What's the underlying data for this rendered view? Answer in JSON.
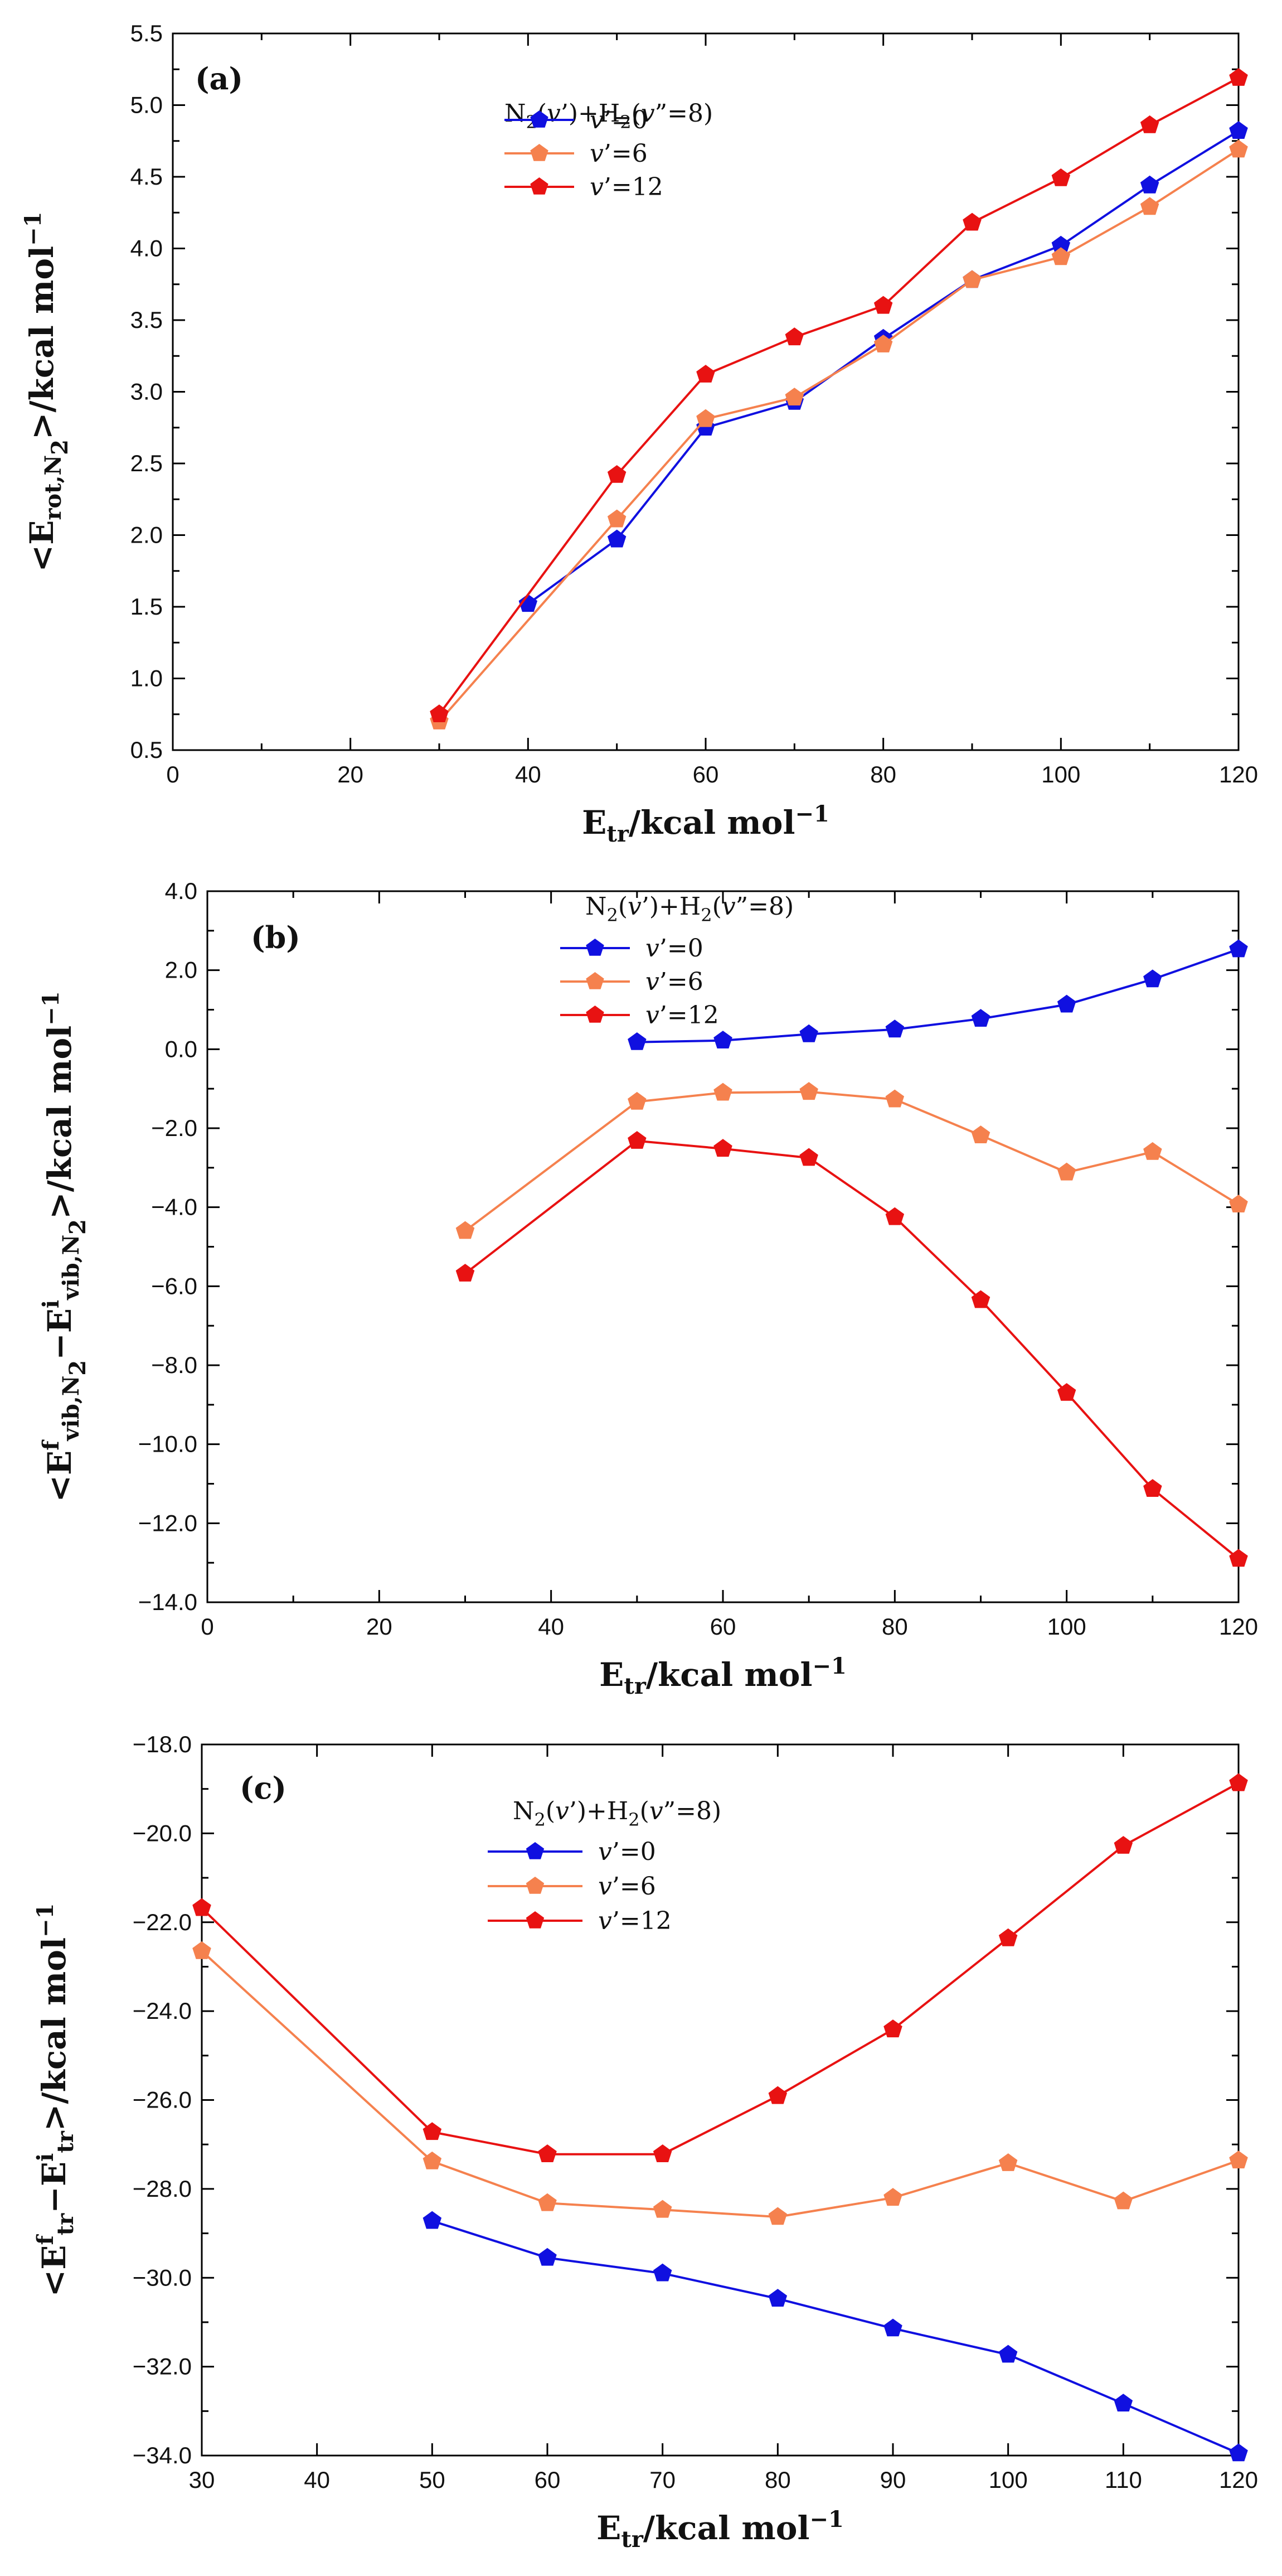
{
  "chart_data": [
    {
      "panel": "(a)",
      "type": "line",
      "xlabel": "E_tr/kcal mol^-1",
      "ylabel": "<E_rot,N2>/kcal mol^-1",
      "xlim": [
        0,
        120
      ],
      "ylim": [
        0.5,
        5.5
      ],
      "xticks": [
        "0",
        "20",
        "40",
        "60",
        "80",
        "100",
        "120"
      ],
      "yticks": [
        "0.5",
        "1.0",
        "1.5",
        "2.0",
        "2.5",
        "3.0",
        "3.5",
        "4.0",
        "4.5",
        "5.0",
        "5.5"
      ],
      "legend_title": "N2(v')+H2(v\"=8)",
      "legend_placement": "top-center",
      "series": [
        {
          "name": "v'=0",
          "color": "#1010e0",
          "x": [
            40,
            50,
            60,
            70,
            80,
            90,
            100,
            110,
            120
          ],
          "values": [
            1.52,
            1.97,
            2.75,
            2.93,
            3.37,
            3.78,
            4.02,
            4.44,
            4.82
          ]
        },
        {
          "name": "v'=6",
          "color": "#f5814e",
          "x": [
            30,
            50,
            60,
            70,
            80,
            90,
            100,
            110,
            120
          ],
          "values": [
            0.7,
            2.11,
            2.81,
            2.96,
            3.33,
            3.78,
            3.94,
            4.29,
            4.69
          ]
        },
        {
          "name": "v'=12",
          "color": "#e81212",
          "x": [
            30,
            50,
            60,
            70,
            80,
            90,
            100,
            110,
            120
          ],
          "values": [
            0.75,
            2.42,
            3.12,
            3.38,
            3.6,
            4.18,
            4.49,
            4.86,
            5.19
          ]
        }
      ]
    },
    {
      "panel": "(b)",
      "type": "line",
      "xlabel": "E_tr/kcal mol^-1",
      "ylabel": "<E^f_vib,N2 - E^i_vib,N2>/kcal mol^-1",
      "xlim": [
        0,
        120
      ],
      "ylim": [
        -14,
        4
      ],
      "xticks": [
        "0",
        "20",
        "40",
        "60",
        "80",
        "100",
        "120"
      ],
      "yticks": [
        "−14.0",
        "−12.0",
        "−10.0",
        "−8.0",
        "−6.0",
        "−4.0",
        "−2.0",
        "0.0",
        "2.0",
        "4.0"
      ],
      "legend_title": "N2(v')+H2(v\"=8)",
      "legend_placement": "top-center",
      "series": [
        {
          "name": "v'=0",
          "color": "#1010e0",
          "x": [
            50,
            60,
            70,
            80,
            90,
            100,
            110,
            120
          ],
          "values": [
            0.18,
            0.22,
            0.38,
            0.5,
            0.77,
            1.13,
            1.77,
            2.53
          ]
        },
        {
          "name": "v'=6",
          "color": "#f5814e",
          "x": [
            30,
            50,
            60,
            70,
            80,
            90,
            100,
            110,
            120
          ],
          "values": [
            -4.6,
            -1.33,
            -1.1,
            -1.08,
            -1.27,
            -2.18,
            -3.12,
            -2.6,
            -3.93
          ]
        },
        {
          "name": "v'=12",
          "color": "#e81212",
          "x": [
            30,
            50,
            60,
            70,
            80,
            90,
            100,
            110,
            120
          ],
          "values": [
            -5.68,
            -2.32,
            -2.52,
            -2.75,
            -4.25,
            -6.35,
            -8.7,
            -11.13,
            -12.9
          ]
        }
      ]
    },
    {
      "panel": "(c)",
      "type": "line",
      "xlabel": "E_tr/kcal mol^-1",
      "ylabel": "<E^f_tr - E^i_tr>/kcal mol^-1",
      "xlim": [
        30,
        120
      ],
      "ylim": [
        -34,
        -18
      ],
      "xticks": [
        "30",
        "40",
        "50",
        "60",
        "70",
        "80",
        "90",
        "100",
        "110",
        "120"
      ],
      "yticks": [
        "−34.0",
        "−32.0",
        "−30.0",
        "−28.0",
        "−26.0",
        "−24.0",
        "−22.0",
        "−20.0",
        "−18.0"
      ],
      "legend_title": "N2(v')+H2(v\"=8)",
      "legend_placement": "top-left",
      "series": [
        {
          "name": "v'=0",
          "color": "#1010e0",
          "x": [
            50,
            60,
            70,
            80,
            90,
            100,
            110,
            120
          ],
          "values": [
            -28.72,
            -29.55,
            -29.9,
            -30.47,
            -31.14,
            -31.73,
            -32.83,
            -33.95
          ]
        },
        {
          "name": "v'=6",
          "color": "#f5814e",
          "x": [
            30,
            50,
            60,
            70,
            80,
            90,
            100,
            110,
            120
          ],
          "values": [
            -22.65,
            -27.38,
            -28.32,
            -28.47,
            -28.63,
            -28.2,
            -27.42,
            -28.28,
            -27.36
          ]
        },
        {
          "name": "v'=12",
          "color": "#e81212",
          "x": [
            30,
            50,
            60,
            70,
            80,
            90,
            100,
            110,
            120
          ],
          "values": [
            -21.68,
            -26.72,
            -27.22,
            -27.22,
            -25.91,
            -24.41,
            -22.36,
            -20.28,
            -18.87
          ]
        }
      ]
    }
  ]
}
